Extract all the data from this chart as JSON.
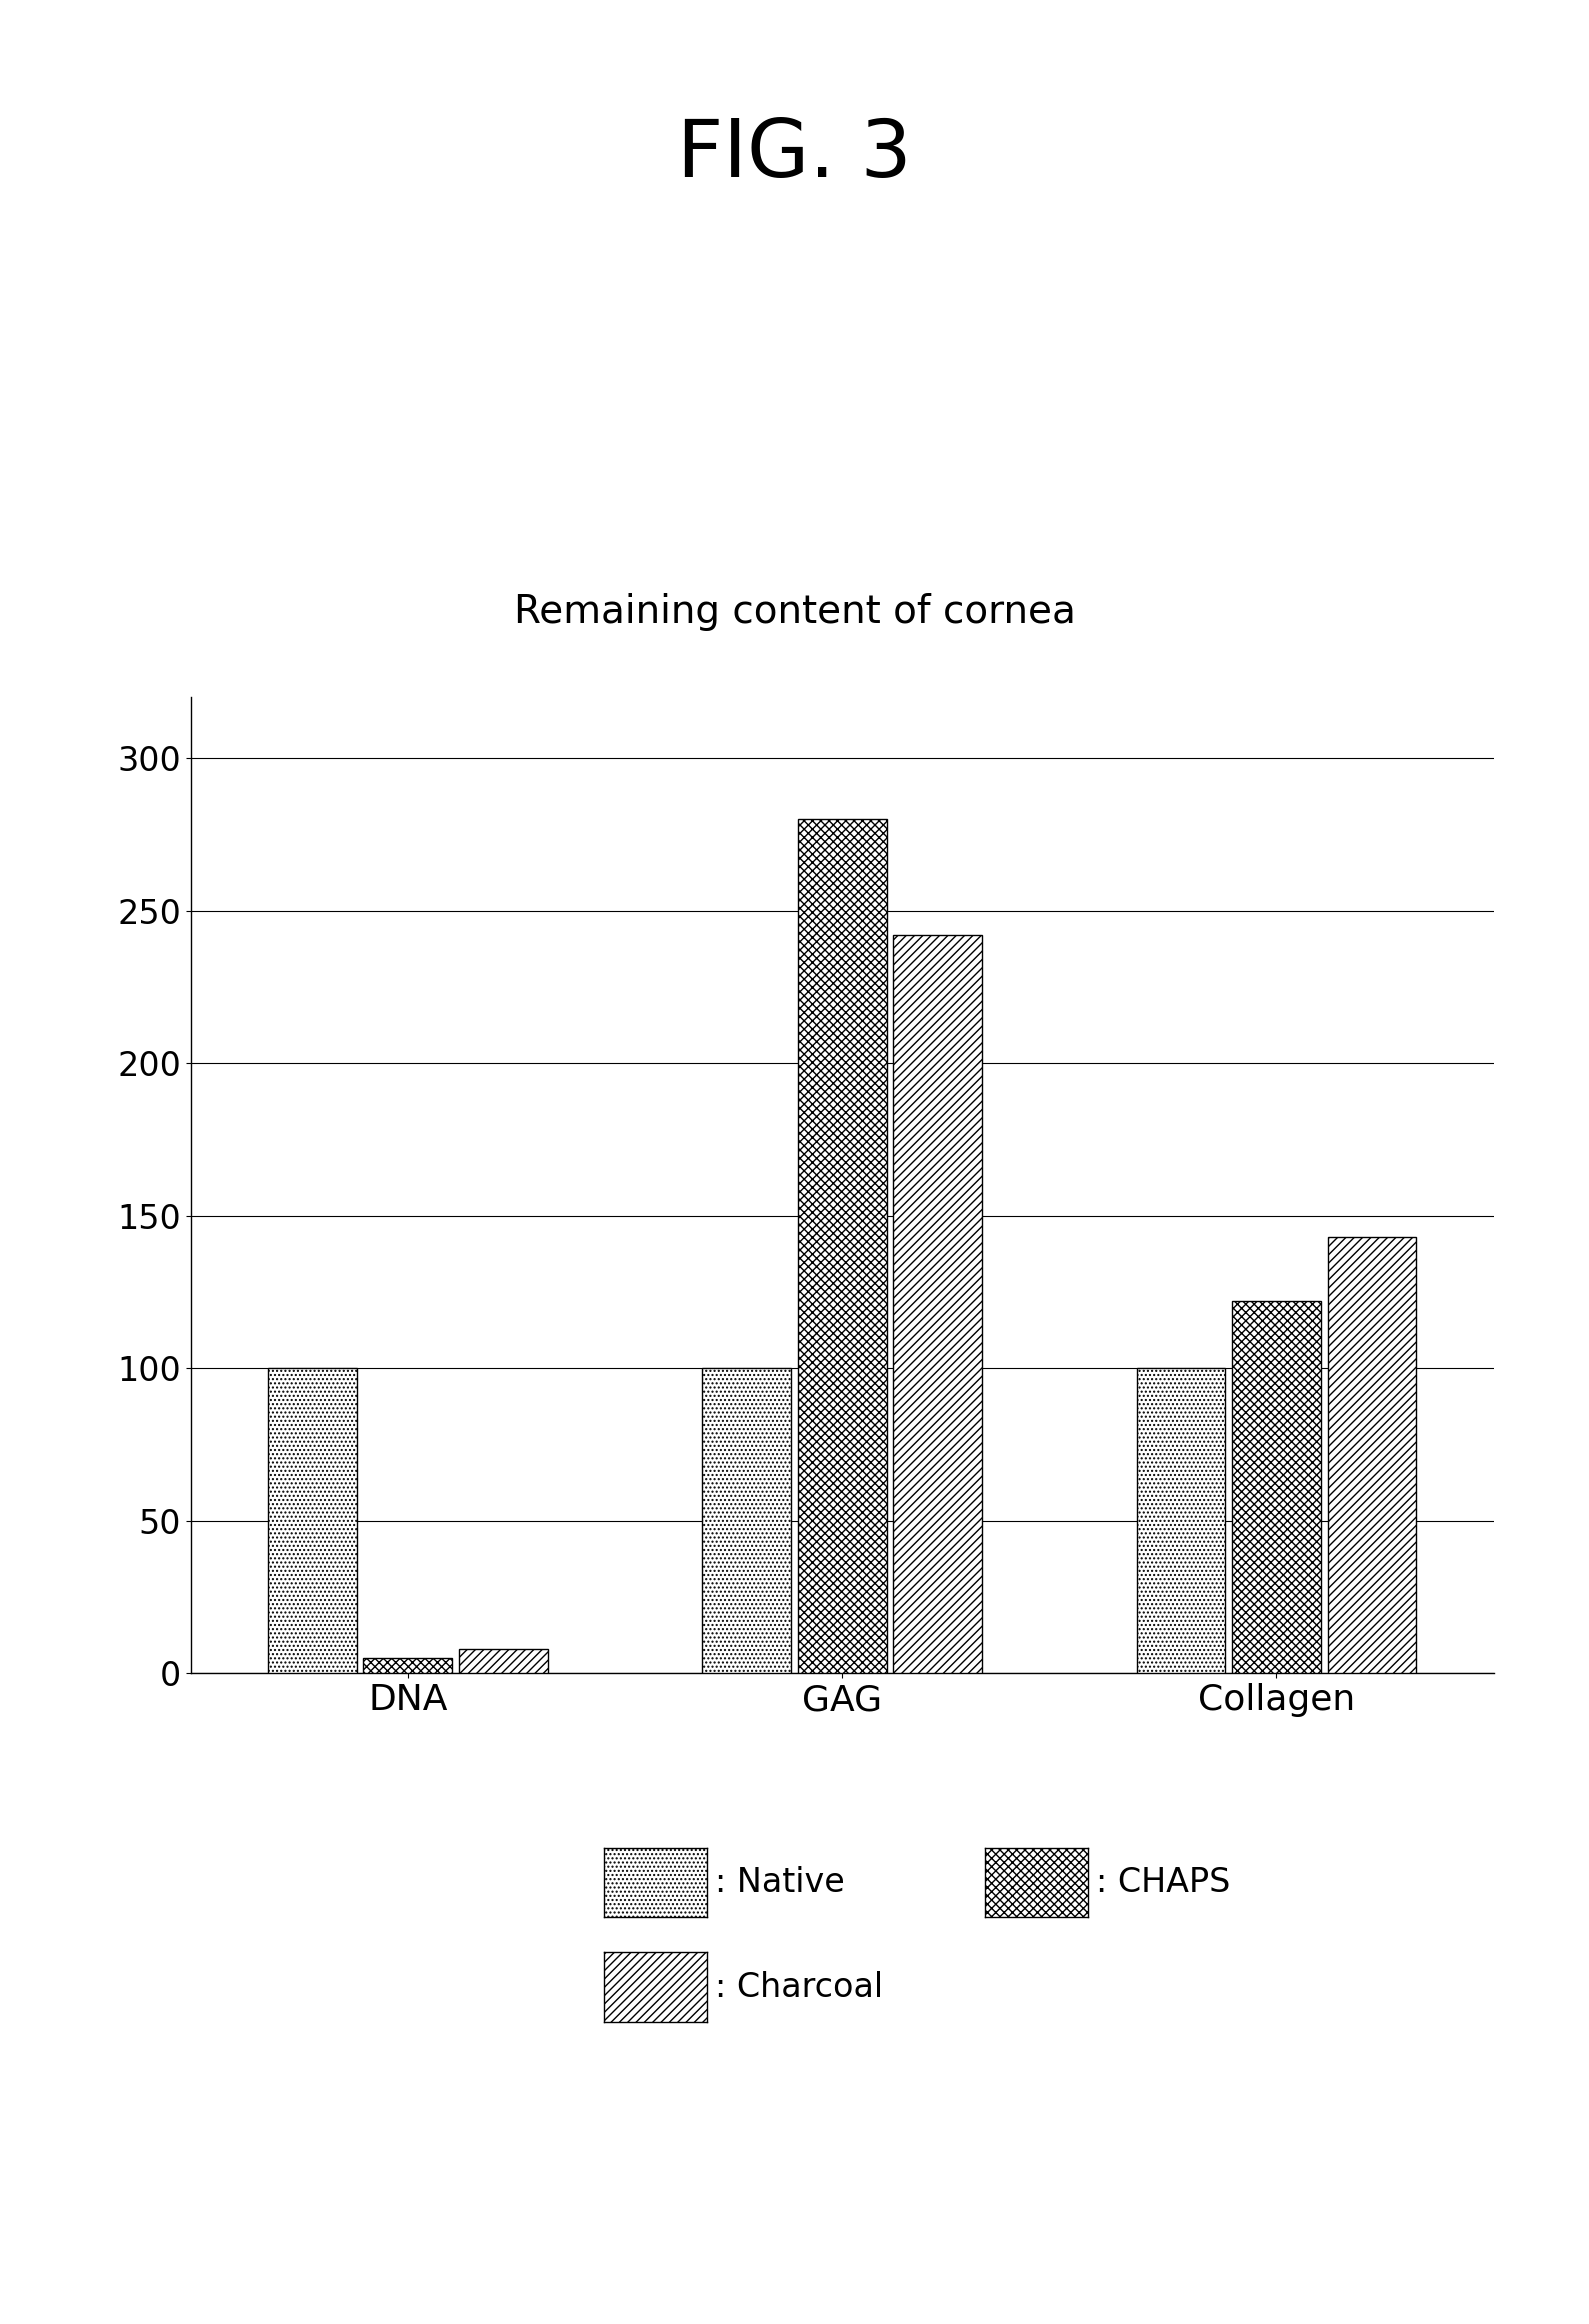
{
  "title": "FIG. 3",
  "chart_title": "Remaining content of cornea",
  "categories": [
    "DNA",
    "GAG",
    "Collagen"
  ],
  "series": {
    "Native": [
      100,
      100,
      100
    ],
    "CHAPS": [
      5,
      280,
      122
    ],
    "Charcoal": [
      8,
      242,
      143
    ]
  },
  "ylim": [
    0,
    320
  ],
  "yticks": [
    0,
    50,
    100,
    150,
    200,
    250,
    300
  ],
  "bar_width": 0.22,
  "background_color": "#ffffff",
  "title_fontsize": 58,
  "chart_title_fontsize": 28,
  "tick_fontsize": 24,
  "legend_fontsize": 24,
  "hatch_native": "....",
  "hatch_chaps": "xxxx",
  "hatch_charcoal": "////"
}
